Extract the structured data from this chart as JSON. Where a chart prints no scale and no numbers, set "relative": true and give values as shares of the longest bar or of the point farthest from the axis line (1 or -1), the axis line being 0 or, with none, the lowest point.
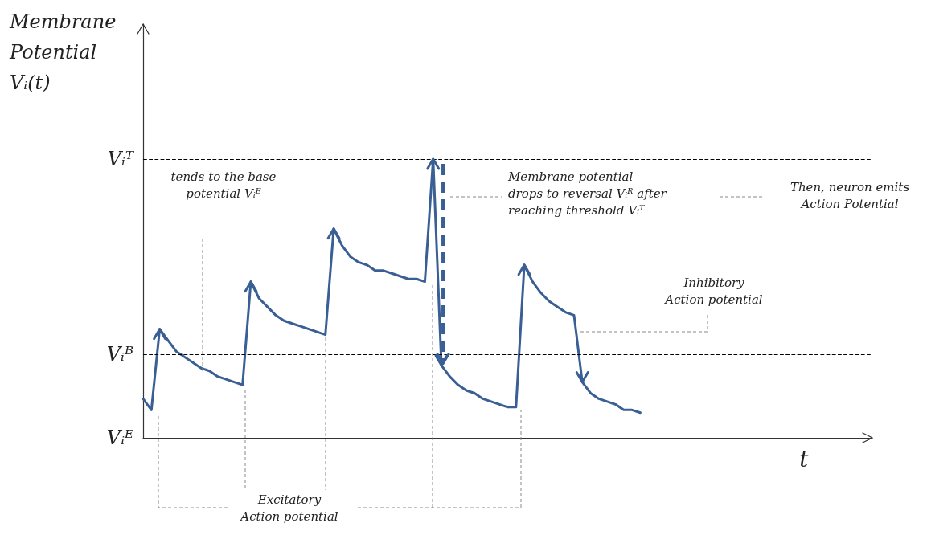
{
  "chart_data": {
    "type": "line",
    "relative": true,
    "ylabel": "Membrane Potential Vᵢ(t)",
    "color": "#3a5f94",
    "marker": "none",
    "line_style": "solid",
    "grid": false,
    "categories": [
      null,
      null,
      null,
      null,
      null,
      null,
      null,
      null,
      null,
      null,
      null,
      null,
      null,
      null,
      null,
      null,
      null,
      null,
      null,
      null,
      null,
      null,
      null,
      null,
      null,
      null,
      null,
      null,
      null,
      null,
      null,
      null,
      null,
      null,
      null,
      null,
      null,
      null,
      null,
      null,
      null,
      null,
      null,
      null,
      null,
      null,
      null,
      null,
      null,
      null,
      null,
      null,
      null,
      null,
      null,
      null,
      null,
      null,
      null,
      null,
      null
    ],
    "values": [
      0.14,
      0.1,
      0.39,
      0.35,
      0.31,
      0.29,
      0.27,
      0.25,
      0.24,
      0.22,
      0.21,
      0.2,
      0.19,
      0.56,
      0.5,
      0.47,
      0.44,
      0.42,
      0.41,
      0.4,
      0.39,
      0.38,
      0.37,
      0.75,
      0.69,
      0.65,
      0.63,
      0.62,
      0.6,
      0.6,
      0.59,
      0.58,
      0.57,
      0.57,
      0.56,
      1.0,
      0.26,
      0.22,
      0.19,
      0.17,
      0.16,
      0.14,
      0.13,
      0.12,
      0.11,
      0.11,
      0.62,
      0.56,
      0.52,
      0.49,
      0.47,
      0.45,
      0.44,
      0.2,
      0.16,
      0.14,
      0.13,
      0.12,
      0.1,
      0.1,
      0.09
    ],
    "ref_lines": [
      {
        "axis": "y",
        "value": 1.0,
        "label": "Vᵢᵀ",
        "color": "#000000",
        "line_style": "dashed"
      },
      {
        "axis": "y",
        "value": 0.3,
        "label": "Vᵢᴮ",
        "color": "#000000",
        "line_style": "dashed"
      },
      {
        "axis": "y",
        "value": 0,
        "label": "Vᵢᴱ",
        "color": "#333333",
        "line_style": "solid"
      }
    ],
    "annotations": [
      "tends to the base potential Vᵢᴱ",
      "Membrane potential drops to reversal Vᵢᴿ after reaching threshold Vᵢᵀ",
      "Then, neuron emits Action Potential",
      "Inhibitory Action potential",
      "Excitatory Action potential",
      "t"
    ]
  }
}
